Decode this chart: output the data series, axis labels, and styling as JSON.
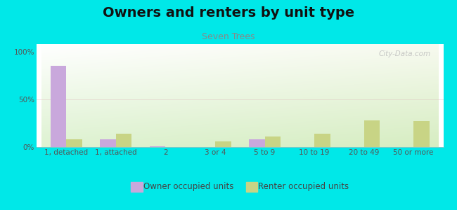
{
  "title": "Owners and renters by unit type",
  "subtitle": "Seven Trees",
  "categories": [
    "1, detached",
    "1, attached",
    "2",
    "3 or 4",
    "5 to 9",
    "10 to 19",
    "20 to 49",
    "50 or more"
  ],
  "owner_values": [
    85,
    8,
    1,
    0,
    8,
    0,
    0,
    0
  ],
  "renter_values": [
    8,
    14,
    0,
    6,
    11,
    14,
    28,
    27
  ],
  "owner_color": "#c9a8dc",
  "renter_color": "#c8d485",
  "background_color": "#00e8e8",
  "yticks": [
    0,
    50,
    100
  ],
  "ylim": [
    0,
    108
  ],
  "bar_width": 0.32,
  "title_fontsize": 14,
  "subtitle_fontsize": 9,
  "tick_fontsize": 7.5,
  "legend_fontsize": 8.5,
  "watermark": "City-Data.com"
}
